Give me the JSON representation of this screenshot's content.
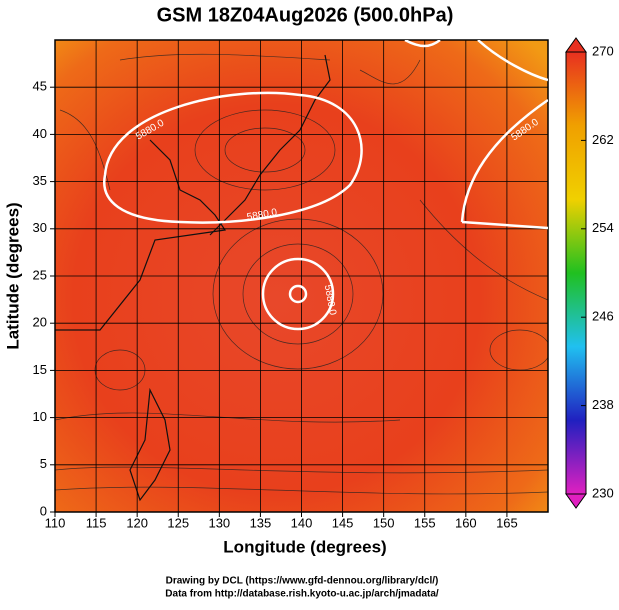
{
  "chart_data": {
    "type": "contour",
    "title": "GSM 18Z04Aug2026 (500.0hPa)",
    "x_label": "Longitude (degrees)",
    "y_label": "Latitude  (degrees)",
    "xlim": [
      110,
      170
    ],
    "xticks": [
      110,
      115,
      120,
      125,
      130,
      135,
      140,
      145,
      150,
      155,
      160,
      165
    ],
    "ylim": [
      0,
      50
    ],
    "yticks": [
      0,
      5,
      10,
      15,
      20,
      25,
      30,
      35,
      40,
      45
    ],
    "grid": true,
    "colorbar": {
      "lim": [
        230,
        270
      ],
      "ticks": [
        230,
        238,
        246,
        254,
        262,
        270
      ],
      "colors": [
        "#e020c0",
        "#2020c0",
        "#20c0f0",
        "#20c020",
        "#f0d000",
        "#f0a000",
        "#e83020"
      ]
    },
    "contours": [
      {
        "value": 5880,
        "label": "5880.0"
      }
    ],
    "credits": [
      "Drawing by DCL (https://www.gfd-dennou.org/library/dcl/)",
      "Data from http://database.rish.kyoto-u.ac.jp/arch/jmadata/"
    ]
  }
}
